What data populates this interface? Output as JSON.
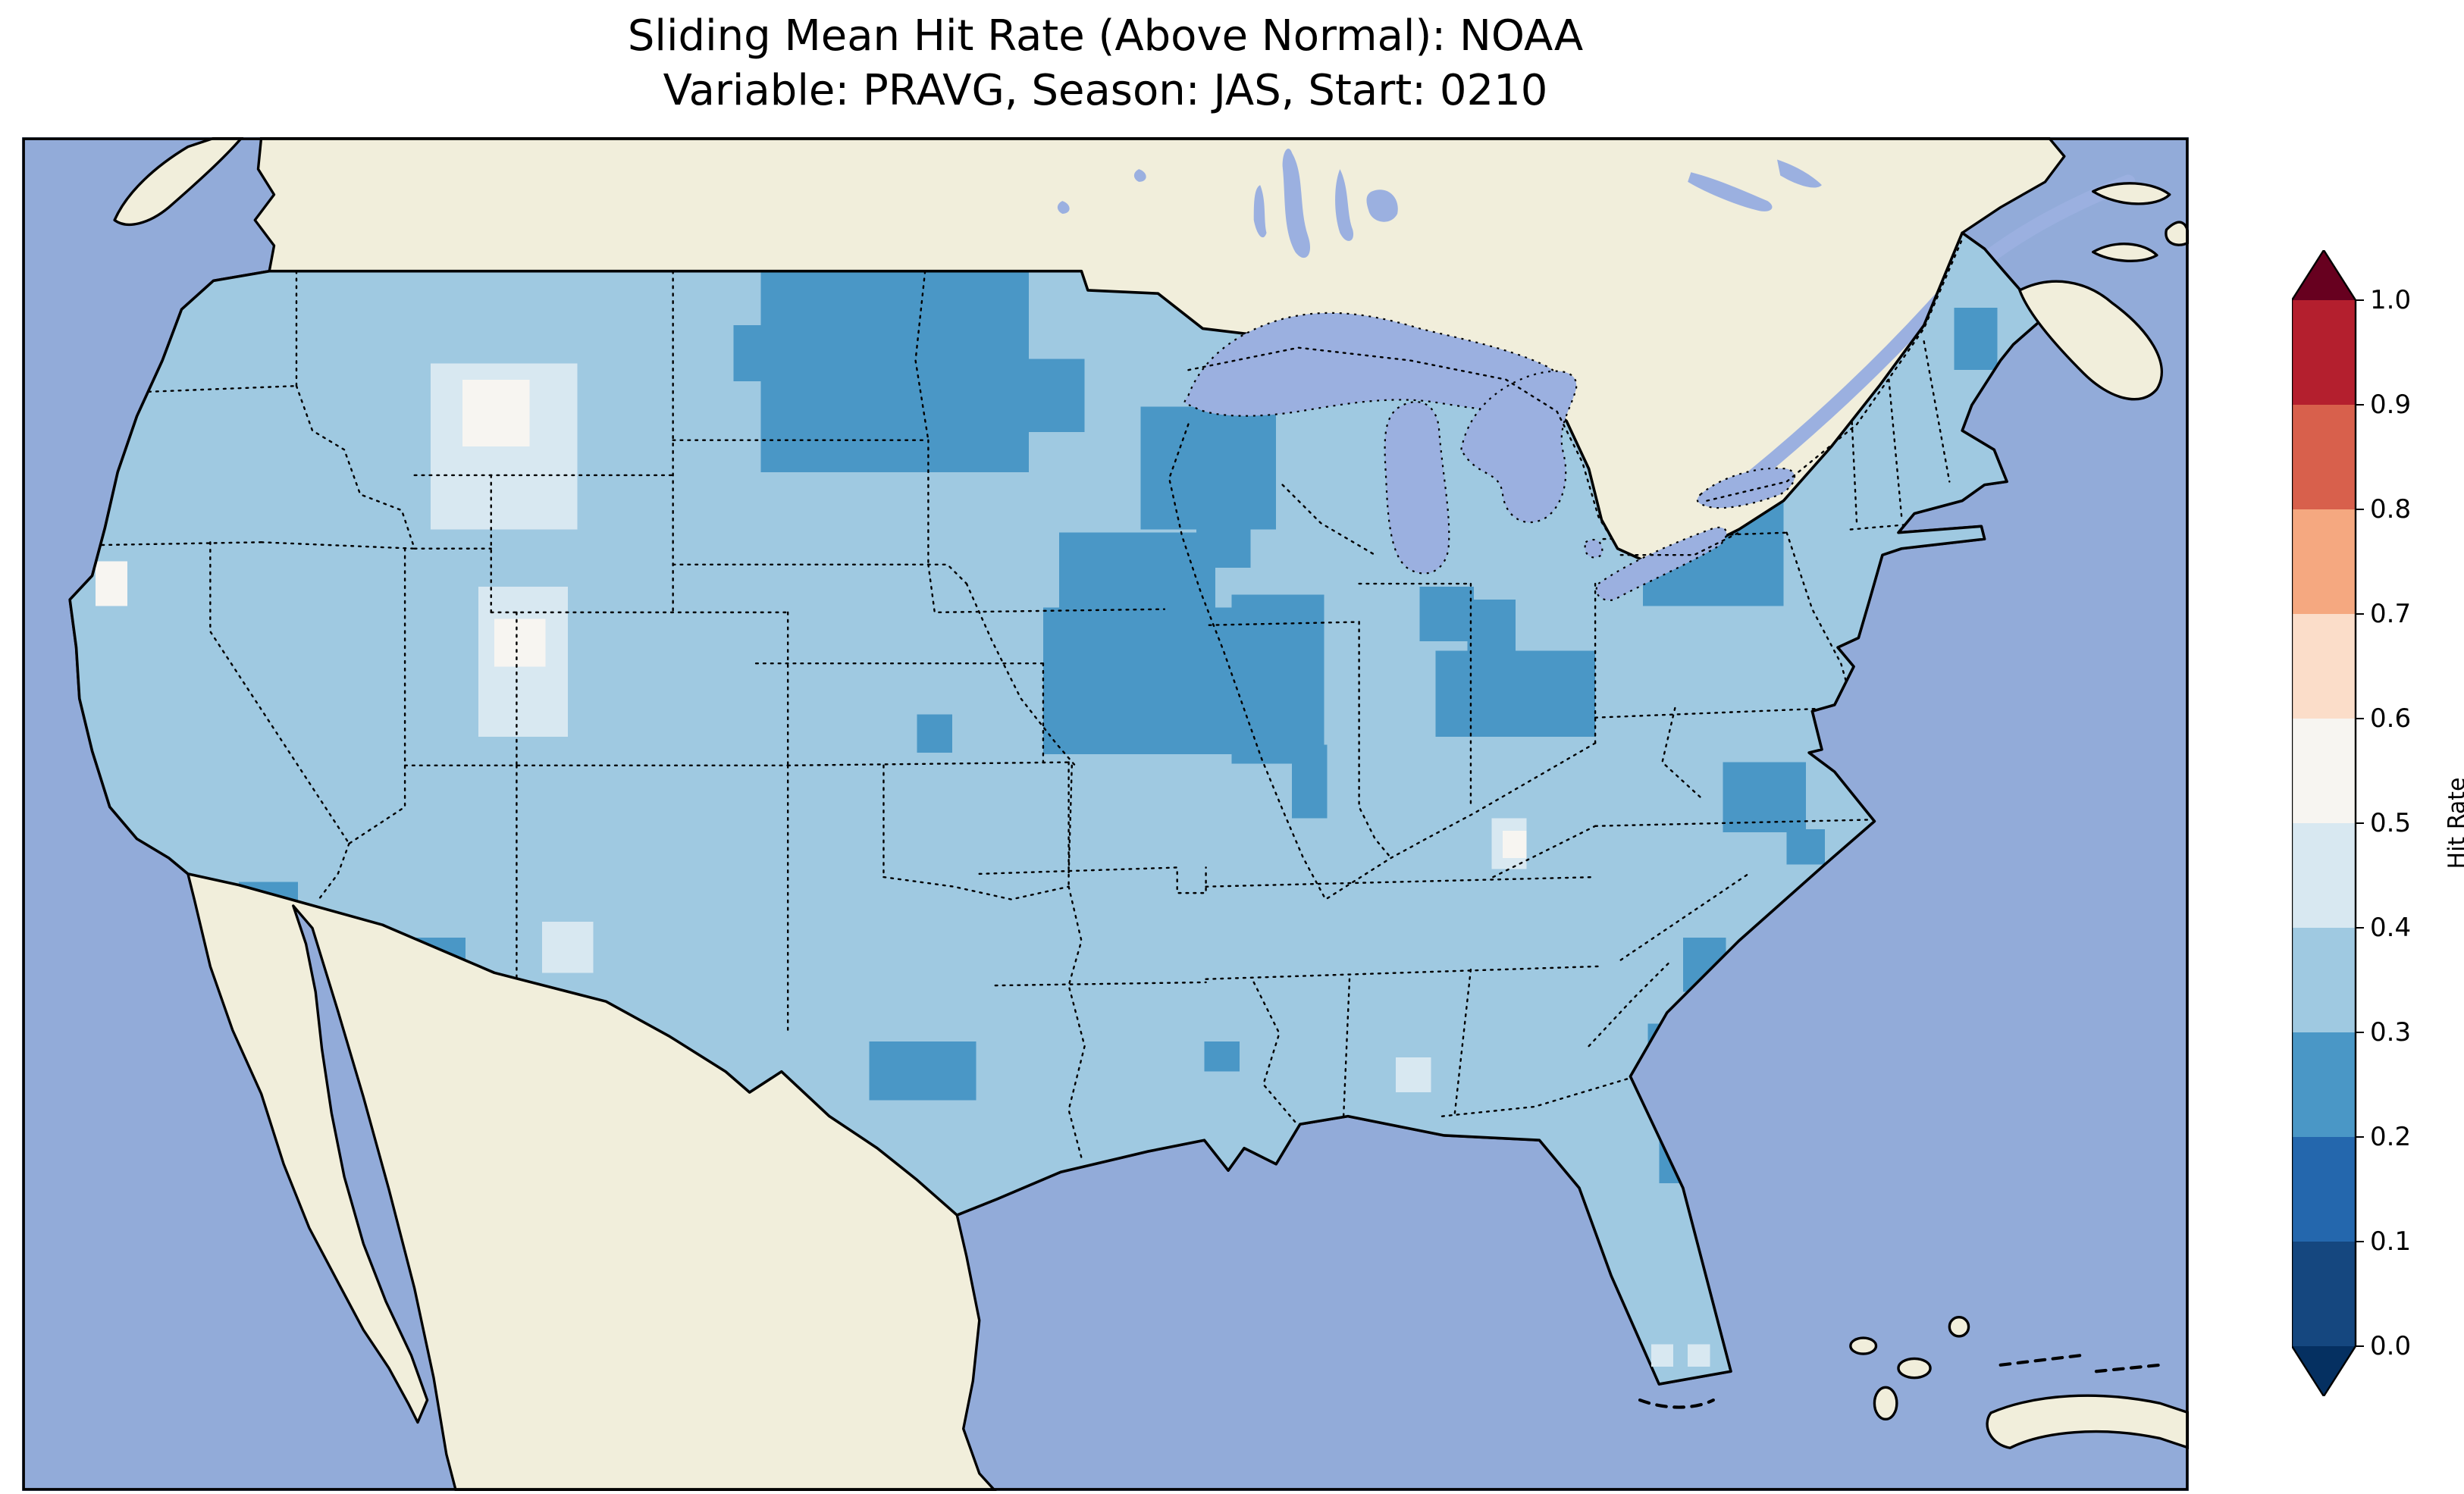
{
  "title": {
    "line1": "Sliding Mean Hit Rate (Above Normal): NOAA",
    "line2": "Variable: PRAVG, Season: JAS, Start: 0210"
  },
  "colorbar": {
    "label": "Hit Rate",
    "ticks": [
      "1.0",
      "0.9",
      "0.8",
      "0.7",
      "0.6",
      "0.5",
      "0.4",
      "0.3",
      "0.2",
      "0.1",
      "0.0"
    ]
  },
  "map_colors": {
    "ocean": "#92abd9",
    "land": "#f1eedb",
    "lake": "#9bb0e0"
  },
  "chart_data": {
    "type": "heatmap",
    "title": "Sliding Mean Hit Rate (Above Normal): NOAA",
    "subtitle": "Variable: PRAVG, Season: JAS, Start: 0210",
    "source": "NOAA",
    "metric": "Sliding Mean Hit Rate (Above Normal)",
    "variable": "PRAVG",
    "season": "JAS",
    "start": "0210",
    "region": "Contiguous United States",
    "colorbar_label": "Hit Rate",
    "value_range": [
      0.0,
      1.0
    ],
    "bin_width": 0.1,
    "colormap": "RdBu_r (discrete, extend both)",
    "base_field_value": 0.35,
    "extend_colors": {
      "under": "#053061",
      "over": "#67001f"
    },
    "bins": [
      {
        "min": 0.0,
        "max": 0.1,
        "color": "#15477f"
      },
      {
        "min": 0.1,
        "max": 0.2,
        "color": "#2467ad"
      },
      {
        "min": 0.2,
        "max": 0.3,
        "color": "#4a97c6"
      },
      {
        "min": 0.3,
        "max": 0.4,
        "color": "#9fc9e1"
      },
      {
        "min": 0.4,
        "max": 0.5,
        "color": "#d8e8f1"
      },
      {
        "min": 0.5,
        "max": 0.6,
        "color": "#f7f5f1"
      },
      {
        "min": 0.6,
        "max": 0.7,
        "color": "#fbddc9"
      },
      {
        "min": 0.7,
        "max": 0.8,
        "color": "#f5a880"
      },
      {
        "min": 0.8,
        "max": 0.9,
        "color": "#d8604c"
      },
      {
        "min": 0.9,
        "max": 1.0,
        "color": "#b41f2e"
      }
    ],
    "grid_note": "region_patches rects are [x,y,w,h] in map-local px (viewBox 1358x849); value is the bin midpoint of the 0.1-wide hit-rate bin; everywhere else over CONUS the field is in the 0.3-0.4 bin",
    "region_patches": [
      {
        "name": "north-dakota-minnesota",
        "value": 0.25,
        "rects": [
          [
            463,
            84,
            168,
            126
          ],
          [
            446,
            118,
            17,
            35
          ],
          [
            631,
            139,
            35,
            46
          ]
        ]
      },
      {
        "name": "wisconsin",
        "value": 0.25,
        "rects": [
          [
            701,
            169,
            85,
            77
          ],
          [
            736,
            246,
            34,
            24
          ]
        ]
      },
      {
        "name": "iowa-illinois-missouri",
        "value": 0.25,
        "rects": [
          [
            650,
            248,
            98,
            70
          ],
          [
            640,
            295,
            142,
            92
          ],
          [
            758,
            287,
            58,
            106
          ],
          [
            796,
            381,
            22,
            46
          ]
        ]
      },
      {
        "name": "nebraska",
        "value": 0.25,
        "rects": [
          [
            561,
            362,
            22,
            24
          ]
        ]
      },
      {
        "name": "indiana-ohio",
        "value": 0.25,
        "rects": [
          [
            876,
            282,
            34,
            34
          ],
          [
            906,
            290,
            30,
            34
          ],
          [
            886,
            322,
            100,
            54
          ]
        ]
      },
      {
        "name": "pennsylvania-new-york",
        "value": 0.25,
        "rects": [
          [
            1016,
            212,
            88,
            82
          ]
        ]
      },
      {
        "name": "maine",
        "value": 0.25,
        "rects": [
          [
            1211,
            107,
            27,
            39
          ]
        ]
      },
      {
        "name": "virginia-north-carolina",
        "value": 0.25,
        "rects": [
          [
            1066,
            392,
            52,
            44
          ]
        ]
      },
      {
        "name": "outer-banks",
        "value": 0.25,
        "rects": [
          [
            1106,
            434,
            24,
            22
          ]
        ]
      },
      {
        "name": "south-carolina-coast",
        "value": 0.25,
        "rects": [
          [
            1041,
            502,
            27,
            34
          ]
        ]
      },
      {
        "name": "georgia-coast",
        "value": 0.25,
        "rects": [
          [
            1019,
            556,
            18,
            22
          ]
        ]
      },
      {
        "name": "florida-gulf-coast",
        "value": 0.25,
        "rects": [
          [
            1026,
            612,
            22,
            44
          ]
        ]
      },
      {
        "name": "new-mexico-south",
        "value": 0.25,
        "rects": [
          [
            241,
            502,
            37,
            32
          ]
        ]
      },
      {
        "name": "arizona-southeast",
        "value": 0.25,
        "rects": [
          [
            136,
            467,
            37,
            27
          ]
        ]
      },
      {
        "name": "texas-central",
        "value": 0.25,
        "rects": [
          [
            531,
            567,
            67,
            37
          ]
        ]
      },
      {
        "name": "texas-west",
        "value": 0.25,
        "rects": [
          [
            441,
            607,
            47,
            37
          ]
        ]
      },
      {
        "name": "texas-south",
        "value": 0.25,
        "rects": [
          [
            561,
            722,
            37,
            32
          ]
        ]
      },
      {
        "name": "louisiana",
        "value": 0.25,
        "rects": [
          [
            741,
            567,
            22,
            19
          ]
        ]
      },
      {
        "name": "michigan-upper-peninsula",
        "value": 0.25,
        "rects": [
          [
            861,
            202,
            17,
            17
          ]
        ]
      },
      {
        "name": "montana-idaho",
        "value": 0.45,
        "rects": [
          [
            256,
            142,
            92,
            104
          ]
        ]
      },
      {
        "name": "great-basin",
        "value": 0.45,
        "rects": [
          [
            286,
            282,
            56,
            94
          ]
        ]
      },
      {
        "name": "new-mexico-west",
        "value": 0.45,
        "rects": [
          [
            326,
            492,
            32,
            32
          ]
        ]
      },
      {
        "name": "mississippi",
        "value": 0.45,
        "rects": [
          [
            861,
            577,
            22,
            22
          ]
        ]
      },
      {
        "name": "tennessee",
        "value": 0.45,
        "rects": [
          [
            921,
            427,
            22,
            32
          ]
        ]
      },
      {
        "name": "montana-idaho-core",
        "value": 0.55,
        "rects": [
          [
            276,
            152,
            42,
            42
          ]
        ]
      },
      {
        "name": "great-basin-core",
        "value": 0.55,
        "rects": [
          [
            296,
            302,
            32,
            30
          ]
        ]
      },
      {
        "name": "california-coast",
        "value": 0.55,
        "rects": [
          [
            46,
            266,
            20,
            28
          ]
        ]
      },
      {
        "name": "tennessee-core",
        "value": 0.55,
        "rects": [
          [
            928,
            435,
            15,
            17
          ]
        ]
      },
      {
        "name": "bahamas-cells",
        "value": 0.45,
        "clip": false,
        "rects": [
          [
            1021,
            757,
            14,
            14
          ],
          [
            1044,
            757,
            14,
            14
          ]
        ]
      }
    ]
  }
}
